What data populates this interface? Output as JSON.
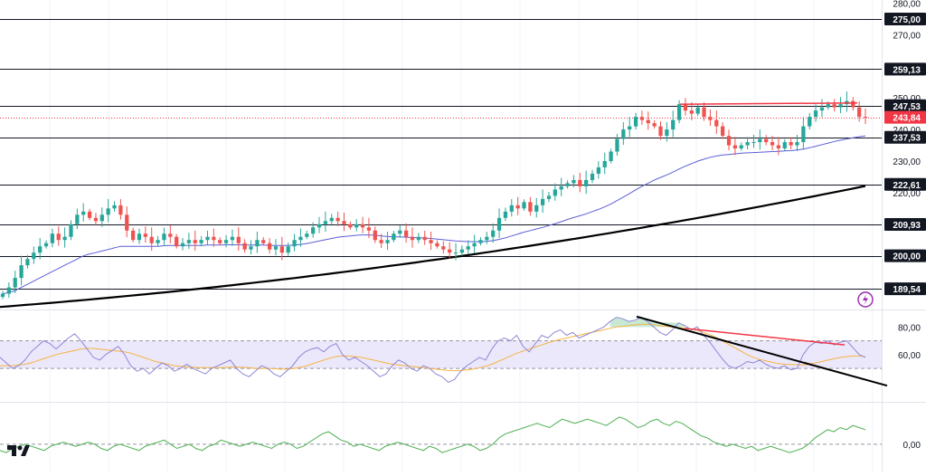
{
  "brand": {
    "logo_text": "TV"
  },
  "colors": {
    "up": "#26a69a",
    "down": "#ef5350",
    "hline": "#131722",
    "ema_fast": "#5b5fd6",
    "ema_slow": "#000000",
    "rsi_line": "#8e86d6",
    "rsi_ma": "#f5b342",
    "rsi_band": "#ece8fb",
    "trend_red": "#f23645",
    "momentum": "#4caf50",
    "price_tag": "#f23645",
    "flash_icon": "#9c27b0"
  },
  "chart_data": [
    {
      "type": "candlestick",
      "panel": "price",
      "ylim": [
        183,
        281
      ],
      "y_ticks": [
        {
          "value": 280,
          "label": "280,00"
        },
        {
          "value": 270,
          "label": "270,00"
        },
        {
          "value": 250,
          "label": "250,00"
        },
        {
          "value": 240,
          "label": "240,00"
        },
        {
          "value": 230,
          "label": "230,00"
        },
        {
          "value": 220,
          "label": "220,00"
        }
      ],
      "levels": [
        {
          "value": 275.0,
          "label": "275,00"
        },
        {
          "value": 259.13,
          "label": "259,13"
        },
        {
          "value": 247.53,
          "label": "247,53"
        },
        {
          "value": 237.53,
          "label": "237,53"
        },
        {
          "value": 222.61,
          "label": "222,61"
        },
        {
          "value": 209.93,
          "label": "209,93"
        },
        {
          "value": 200.0,
          "label": "200,00"
        },
        {
          "value": 189.54,
          "label": "189,54"
        }
      ],
      "last_price": {
        "value": 243.84,
        "label": "243,84"
      },
      "closes": [
        188,
        190,
        193,
        197,
        199,
        201,
        203,
        204,
        207,
        205,
        206,
        210,
        213,
        214,
        212,
        211,
        213,
        215,
        216,
        213,
        208,
        205,
        207,
        206,
        204,
        205,
        207,
        206,
        203,
        204,
        205,
        204,
        205,
        206,
        205,
        204,
        205,
        206,
        204,
        202,
        203,
        205,
        204,
        202,
        203,
        201,
        203,
        205,
        206,
        207,
        209,
        210,
        211,
        212,
        211,
        210,
        209,
        210,
        209,
        208,
        205,
        204,
        205,
        207,
        208,
        206,
        205,
        206,
        205,
        204,
        203,
        202,
        201,
        201,
        202,
        203,
        204,
        205,
        206,
        208,
        212,
        214,
        216,
        215,
        217,
        214,
        216,
        218,
        219,
        221,
        222,
        223,
        224,
        222,
        224,
        226,
        228,
        230,
        233,
        237,
        240,
        241,
        244,
        243,
        242,
        241,
        238,
        240,
        243,
        248,
        246,
        245,
        247,
        244,
        243,
        241,
        238,
        235,
        234,
        235,
        236,
        236,
        237,
        236,
        235,
        234,
        236,
        235,
        236,
        241,
        244,
        246,
        247,
        248,
        247,
        248,
        249,
        247,
        244,
        243.84
      ],
      "ema_fast": [
        188,
        188.4,
        189,
        190,
        191,
        192,
        193,
        194,
        195,
        196,
        197,
        198,
        199,
        200,
        200.6,
        201,
        201.5,
        202,
        202.5,
        203,
        203,
        203,
        203,
        203,
        203,
        203,
        203.2,
        203.3,
        203.3,
        203.3,
        203.3,
        203.3,
        203.3,
        203.4,
        203.4,
        203.4,
        203.5,
        203.5,
        203.5,
        203.4,
        203.4,
        203.4,
        203.4,
        203.3,
        203.3,
        203.3,
        203.3,
        203.4,
        203.6,
        203.9,
        204.3,
        204.7,
        205.1,
        205.5,
        205.9,
        206.1,
        206.3,
        206.5,
        206.6,
        206.6,
        206.5,
        206.3,
        206.1,
        206,
        206,
        205.9,
        205.8,
        205.7,
        205.6,
        205.5,
        205.3,
        205.1,
        204.9,
        204.7,
        204.6,
        204.5,
        204.5,
        204.5,
        204.6,
        204.8,
        205.2,
        205.7,
        206.3,
        206.9,
        207.5,
        208,
        208.5,
        209,
        209.6,
        210.2,
        210.8,
        211.5,
        212.1,
        212.7,
        213.3,
        214,
        214.7,
        215.5,
        216.4,
        217.5,
        218.6,
        219.7,
        220.9,
        222,
        223,
        224,
        224.8,
        225.6,
        226.5,
        227.5,
        228.4,
        229.2,
        230,
        230.6,
        231.2,
        231.6,
        231.9,
        232.1,
        232.3,
        232.5,
        232.6,
        232.7,
        232.8,
        232.9,
        233,
        233.1,
        233.2,
        233.3,
        233.5,
        233.8,
        234.2,
        234.7,
        235.2,
        235.7,
        236.2,
        236.6,
        237,
        237.4,
        237.7,
        238
      ],
      "ema_slow_range": [
        183.8,
        222.1
      ]
    },
    {
      "type": "line",
      "panel": "oscillator",
      "ylim": [
        35,
        92
      ],
      "y_ticks": [
        {
          "value": 80,
          "label": "80,00"
        },
        {
          "value": 60,
          "label": "60,00"
        }
      ],
      "dashed_levels": [
        70,
        50
      ],
      "band": [
        50,
        70
      ],
      "rsi": [
        58,
        54,
        50,
        52,
        56,
        62,
        66,
        70,
        68,
        64,
        68,
        72,
        75,
        70,
        64,
        58,
        56,
        60,
        63,
        66,
        60,
        52,
        48,
        50,
        46,
        50,
        54,
        52,
        48,
        50,
        53,
        50,
        48,
        46,
        50,
        52,
        54,
        56,
        50,
        46,
        44,
        48,
        52,
        50,
        46,
        44,
        48,
        52,
        58,
        62,
        64,
        65,
        62,
        66,
        68,
        60,
        56,
        58,
        55,
        52,
        48,
        44,
        46,
        52,
        56,
        54,
        50,
        48,
        52,
        50,
        46,
        44,
        40,
        42,
        48,
        52,
        55,
        58,
        56,
        64,
        70,
        72,
        70,
        74,
        66,
        62,
        68,
        74,
        72,
        76,
        78,
        74,
        76,
        72,
        74,
        76,
        78,
        80,
        84,
        87,
        86,
        84,
        85,
        87,
        84,
        80,
        76,
        74,
        78,
        83,
        81,
        78,
        80,
        74,
        69,
        63,
        57,
        52,
        50,
        52,
        55,
        54,
        56,
        53,
        51,
        50,
        52,
        49,
        50,
        60,
        66,
        69,
        68,
        70,
        67,
        69,
        70,
        65,
        60,
        58
      ],
      "rsi_ma": [
        52,
        52,
        52,
        52.5,
        53,
        54,
        55.5,
        57,
        58.5,
        60,
        61,
        62,
        63,
        64,
        64.5,
        64.5,
        64,
        63.5,
        63,
        62.5,
        62,
        61,
        59.5,
        58,
        56.5,
        55,
        54,
        53,
        52,
        51.5,
        51,
        51,
        50.5,
        50.5,
        50.5,
        50.5,
        50.5,
        51,
        51,
        50.8,
        50.5,
        50,
        50,
        50,
        49.8,
        49.5,
        49.5,
        49.8,
        50.5,
        51.5,
        53,
        54.5,
        56,
        57.5,
        58.5,
        59,
        59,
        58.5,
        58,
        57,
        56,
        55,
        54,
        53,
        52.5,
        52,
        51.5,
        51,
        50.5,
        50,
        49.5,
        49,
        48.5,
        48.3,
        48.5,
        49,
        49.5,
        50.5,
        51.5,
        53,
        55,
        57,
        59,
        61,
        62.5,
        64,
        65.5,
        67,
        68.5,
        70,
        71,
        72,
        73,
        74,
        75,
        76,
        77,
        78,
        79,
        80,
        80.5,
        81,
        81.5,
        82,
        82,
        81.5,
        81,
        80.5,
        80,
        79.5,
        79,
        78.5,
        77.5,
        76,
        74.5,
        72.5,
        70,
        67.5,
        65,
        62.5,
        60,
        58,
        56.5,
        55.5,
        54.5,
        53.5,
        53,
        52.8,
        52.6,
        52.5,
        53,
        54,
        55,
        56,
        57,
        58,
        58.5,
        59,
        59,
        58.5
      ],
      "trendlines": [
        "black descending",
        "red descending"
      ]
    },
    {
      "type": "line",
      "panel": "momentum",
      "y_ticks": [
        {
          "value": 0,
          "label": "0,00"
        }
      ],
      "zero_line": true,
      "values": [
        -3,
        -4,
        -2,
        -1,
        0,
        -1,
        -2,
        -3,
        -1,
        0,
        1,
        0,
        -1,
        0,
        1,
        0,
        -2,
        -3,
        -1,
        0,
        -1,
        -2,
        -3,
        -1,
        0,
        1,
        2,
        0,
        -2,
        -1,
        0,
        -2,
        -3,
        -1,
        0,
        2,
        1,
        0,
        -1,
        0,
        1,
        0,
        -1,
        -2,
        0,
        1,
        0,
        -2,
        -1,
        1,
        3,
        5,
        6,
        4,
        2,
        1,
        -1,
        0,
        -1,
        -2,
        -3,
        -1,
        0,
        1,
        0,
        -1,
        -2,
        -3,
        -1,
        -2,
        -4,
        -3,
        -2,
        -1,
        0,
        -1,
        -3,
        -2,
        0,
        3,
        5,
        6,
        7,
        8,
        9,
        10,
        9,
        8,
        10,
        12,
        11,
        10,
        11,
        12,
        11,
        10,
        9,
        11,
        13,
        12,
        10,
        8,
        9,
        11,
        12,
        10,
        9,
        11,
        10,
        8,
        6,
        4,
        3,
        1,
        0,
        -1,
        0,
        -1,
        -2,
        -1,
        -3,
        -2,
        -1,
        -2,
        -3,
        -4,
        -3,
        -2,
        0,
        3,
        5,
        7,
        6,
        8,
        7,
        9,
        8,
        7
      ]
    }
  ]
}
